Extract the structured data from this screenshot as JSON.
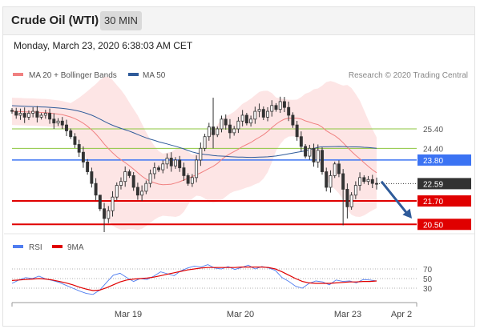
{
  "header": {
    "title": "Crude Oil (WTI)",
    "timeframe": "30 MIN"
  },
  "timestamp": "Monday, March 23, 2020 6:38:03 AM CET",
  "legend": {
    "items": [
      {
        "label": "MA 20 + Bollinger Bands",
        "color": "#f08080"
      },
      {
        "label": "MA 50",
        "color": "#2f5b9a"
      }
    ],
    "credit": "Research © 2020 Trading Central"
  },
  "rsi_legend": [
    {
      "label": "RSI",
      "color": "#4f7df0"
    },
    {
      "label": "9MA",
      "color": "#e00000"
    }
  ],
  "chart_data": [
    {
      "type": "candlestick",
      "title": "Crude Oil (WTI)",
      "interval": "30 MIN",
      "x_axis_labels": [
        "Mar 19",
        "Mar 20",
        "Mar 23",
        "Apr 2"
      ],
      "ylim": [
        20.1,
        27.7
      ],
      "price_levels": [
        {
          "value": 25.4,
          "label": "25.40",
          "color": "#8dc63f",
          "style": "thin"
        },
        {
          "value": 24.4,
          "label": "24.40",
          "color": "#8dc63f",
          "style": "thin"
        },
        {
          "value": 23.8,
          "label": "23.80",
          "color": "#3b73f3",
          "style": "badge"
        },
        {
          "value": 22.59,
          "label": "22.59",
          "color": "#333333",
          "style": "current"
        },
        {
          "value": 21.7,
          "label": "21.70",
          "color": "#e00000",
          "style": "badge"
        },
        {
          "value": 20.5,
          "label": "20.50",
          "color": "#e00000",
          "style": "badge"
        }
      ],
      "forecast_arrow": {
        "from": 22.7,
        "to": 20.8,
        "color": "#2f5b9a"
      },
      "closes": [
        26.3,
        26.1,
        26.2,
        26.0,
        26.2,
        26.3,
        26.0,
        26.1,
        26.2,
        25.9,
        25.7,
        25.8,
        25.6,
        25.3,
        25.0,
        24.6,
        24.2,
        23.7,
        23.2,
        22.6,
        22.0,
        21.3,
        20.8,
        21.2,
        21.9,
        22.5,
        22.7,
        23.2,
        23.0,
        22.4,
        22.0,
        22.2,
        22.6,
        23.1,
        23.4,
        23.3,
        23.6,
        23.9,
        23.5,
        23.8,
        23.4,
        23.0,
        22.6,
        22.9,
        23.8,
        24.4,
        25.0,
        25.5,
        25.1,
        25.4,
        25.9,
        25.6,
        25.2,
        25.4,
        25.8,
        26.1,
        25.7,
        25.9,
        26.3,
        26.4,
        26.0,
        26.3,
        26.6,
        26.4,
        26.8,
        26.5,
        26.1,
        25.6,
        25.0,
        24.5,
        24.0,
        24.4,
        23.7,
        24.3,
        23.2,
        22.4,
        23.0,
        23.6,
        23.1,
        22.3,
        21.4,
        22.0,
        22.5,
        22.9,
        22.7,
        22.8,
        22.6,
        22.59
      ]
    },
    {
      "type": "line",
      "title": "RSI",
      "ylim": [
        0,
        100
      ],
      "y_ticks": [
        70,
        50,
        30
      ],
      "series": [
        {
          "name": "RSI",
          "color": "#4f7df0",
          "values": [
            40,
            47,
            52,
            50,
            55,
            49,
            46,
            42,
            36,
            30,
            24,
            19,
            17,
            26,
            42,
            57,
            61,
            52,
            44,
            50,
            48,
            55,
            64,
            60,
            56,
            66,
            72,
            76,
            74,
            79,
            72,
            70,
            75,
            69,
            73,
            78,
            70,
            75,
            72,
            67,
            52,
            44,
            34,
            30,
            40,
            45,
            43,
            37,
            47,
            44,
            45,
            41,
            48,
            47,
            45
          ]
        },
        {
          "name": "9MA",
          "color": "#e00000",
          "values": [
            46,
            47,
            48,
            49,
            50,
            49,
            47,
            44,
            41,
            37,
            32,
            28,
            25,
            26,
            31,
            37,
            43,
            47,
            49,
            50,
            51,
            53,
            56,
            59,
            62,
            65,
            68,
            70,
            72,
            73,
            73,
            73,
            73,
            73,
            74,
            74,
            74,
            74,
            73,
            70,
            64,
            57,
            50,
            44,
            41,
            40,
            40,
            40,
            41,
            42,
            43,
            43,
            44,
            44,
            45
          ]
        }
      ]
    }
  ]
}
